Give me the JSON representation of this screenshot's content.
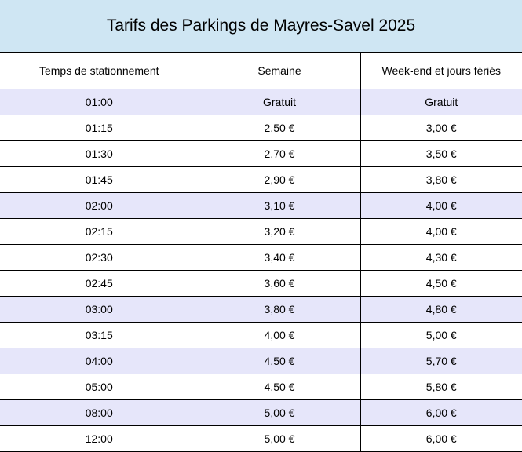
{
  "title": "Tarifs des Parkings de Mayres-Savel 2025",
  "headers": [
    "Temps de stationnement",
    "Semaine",
    "Week-end et jours fériés"
  ],
  "colors": {
    "title_background": "#cfe6f3",
    "highlight_row": "#e6e6fa"
  },
  "rows": [
    {
      "time": "01:00",
      "week": "Gratuit",
      "weekend": "Gratuit",
      "highlight": true
    },
    {
      "time": "01:15",
      "week": "2,50 €",
      "weekend": "3,00 €",
      "highlight": false
    },
    {
      "time": "01:30",
      "week": "2,70 €",
      "weekend": "3,50 €",
      "highlight": false
    },
    {
      "time": "01:45",
      "week": "2,90 €",
      "weekend": "3,80 €",
      "highlight": false
    },
    {
      "time": "02:00",
      "week": "3,10 €",
      "weekend": "4,00 €",
      "highlight": true
    },
    {
      "time": "02:15",
      "week": "3,20 €",
      "weekend": "4,00 €",
      "highlight": false
    },
    {
      "time": "02:30",
      "week": "3,40 €",
      "weekend": "4,30 €",
      "highlight": false
    },
    {
      "time": "02:45",
      "week": "3,60 €",
      "weekend": "4,50 €",
      "highlight": false
    },
    {
      "time": "03:00",
      "week": "3,80 €",
      "weekend": "4,80 €",
      "highlight": true
    },
    {
      "time": "03:15",
      "week": "4,00 €",
      "weekend": "5,00 €",
      "highlight": false
    },
    {
      "time": "04:00",
      "week": "4,50 €",
      "weekend": "5,70 €",
      "highlight": true
    },
    {
      "time": "05:00",
      "week": "4,50 €",
      "weekend": "5,80 €",
      "highlight": false
    },
    {
      "time": "08:00",
      "week": "5,00 €",
      "weekend": "6,00 €",
      "highlight": true
    },
    {
      "time": "12:00",
      "week": "5,00 €",
      "weekend": "6,00 €",
      "highlight": false
    }
  ]
}
